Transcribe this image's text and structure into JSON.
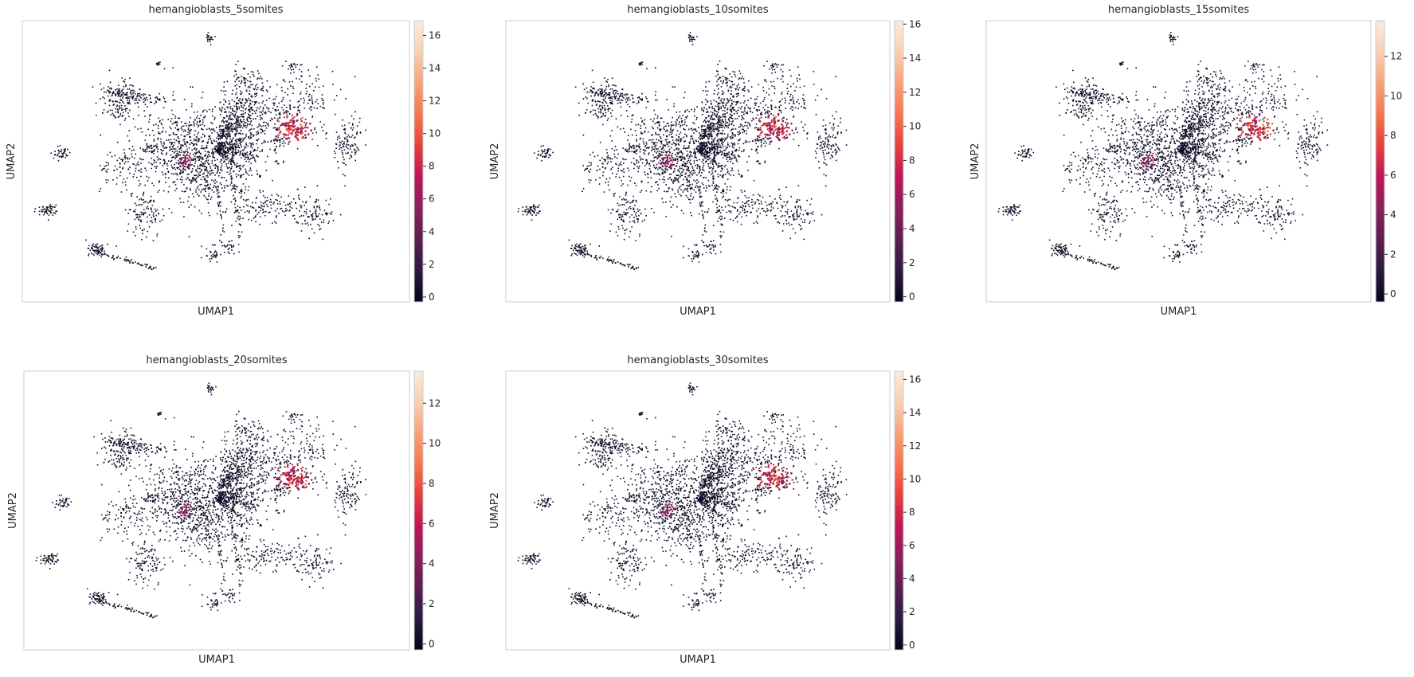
{
  "colors": {
    "background": "#ffffff",
    "frame": "#cccccc",
    "text": "#262626",
    "colormap_stops": [
      "#03051a",
      "#2b1a41",
      "#5b1e51",
      "#8b1f5b",
      "#bd1655",
      "#e83f3f",
      "#f6764d",
      "#f7a27a",
      "#f9d0b3",
      "#faebdd"
    ]
  },
  "chart_data": [
    {
      "type": "scatter",
      "title": "hemangioblasts_5somites",
      "xlabel": "UMAP1",
      "ylabel": "UMAP2",
      "colorbar": {
        "ticks": [
          0,
          2,
          4,
          6,
          8,
          10,
          12,
          14,
          16
        ],
        "range": [
          -0.3,
          16.9
        ]
      }
    },
    {
      "type": "scatter",
      "title": "hemangioblasts_10somites",
      "xlabel": "UMAP1",
      "ylabel": "UMAP2",
      "colorbar": {
        "ticks": [
          0,
          2,
          4,
          6,
          8,
          10,
          12,
          14,
          16
        ],
        "range": [
          -0.3,
          16.2
        ]
      }
    },
    {
      "type": "scatter",
      "title": "hemangioblasts_15somites",
      "xlabel": "UMAP1",
      "ylabel": "UMAP2",
      "colorbar": {
        "ticks": [
          0,
          2,
          4,
          6,
          8,
          10,
          12
        ],
        "range": [
          -0.4,
          13.8
        ]
      }
    },
    {
      "type": "scatter",
      "title": "hemangioblasts_20somites",
      "xlabel": "UMAP1",
      "ylabel": "UMAP2",
      "colorbar": {
        "ticks": [
          0,
          2,
          4,
          6,
          8,
          10,
          12
        ],
        "range": [
          -0.3,
          13.6
        ]
      }
    },
    {
      "type": "scatter",
      "title": "hemangioblasts_30somites",
      "xlabel": "UMAP1",
      "ylabel": "UMAP2",
      "colorbar": {
        "ticks": [
          0,
          2,
          4,
          6,
          8,
          10,
          12,
          14,
          16
        ],
        "range": [
          -0.3,
          16.5
        ]
      }
    }
  ]
}
